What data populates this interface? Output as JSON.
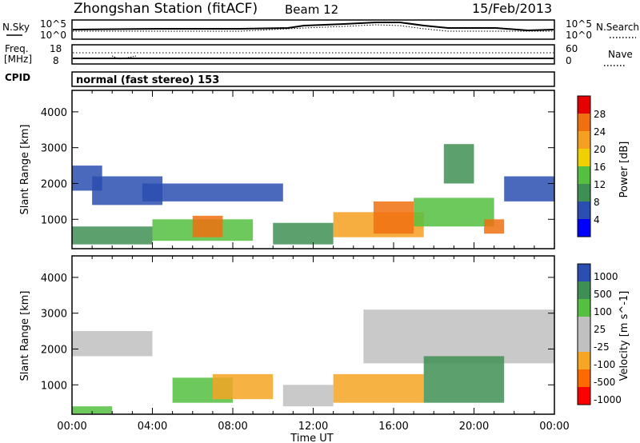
{
  "header": {
    "station": "Zhongshan Station (fitACF)",
    "beam": "Beam 12",
    "date": "15/Feb/2013"
  },
  "strip_labels": {
    "nsky": "N.Sky",
    "nsearch": "N.Search",
    "freq_line1": "Freq.",
    "freq_line2": "[MHz]",
    "nave": "Nave",
    "cpid": "CPID",
    "cpid_value": "normal (fast stereo) 153"
  },
  "noise_axis": {
    "top_left": "10^5",
    "bottom_left": "10^0",
    "top_right": "10^5",
    "bottom_right": "10^0"
  },
  "freq_axis": {
    "top_left": "18",
    "bottom_left": "8",
    "top_right": "60",
    "bottom_right": "0"
  },
  "x_axis": {
    "label": "Time UT",
    "ticks": [
      "00:00",
      "04:00",
      "08:00",
      "12:00",
      "16:00",
      "20:00",
      "00:00"
    ]
  },
  "colors": {
    "power": [
      "#0000ff",
      "#2a4fb0",
      "#3f8f55",
      "#55c040",
      "#f0d000",
      "#f5a020",
      "#f07010",
      "#e60000"
    ],
    "velocity": [
      "#ff0000",
      "#ff6a00",
      "#f5a623",
      "#c0c0c0",
      "#c0c0c0",
      "#55c040",
      "#3f8f55",
      "#2a4fb0"
    ]
  },
  "chart_data": [
    {
      "type": "heatmap",
      "title": "",
      "ylabel": "Slant Range [km]",
      "xlabel": "",
      "xlim_hours": [
        0,
        24
      ],
      "ylim": [
        180,
        4600
      ],
      "yticks": [
        "1000",
        "2000",
        "3000",
        "4000"
      ],
      "colorbar": {
        "label": "Power [dB]",
        "ticks": [
          "4",
          "8",
          "12",
          "16",
          "20",
          "24",
          "28"
        ],
        "range": [
          0,
          32
        ]
      },
      "regions": [
        {
          "t": [
            0.0,
            1.5
          ],
          "r": [
            1800,
            2500
          ],
          "value": 6
        },
        {
          "t": [
            1.0,
            4.5
          ],
          "r": [
            1400,
            2200
          ],
          "value": 5
        },
        {
          "t": [
            3.5,
            10.5
          ],
          "r": [
            1500,
            2000
          ],
          "value": 4
        },
        {
          "t": [
            0.0,
            4.0
          ],
          "r": [
            300,
            800
          ],
          "value": 10
        },
        {
          "t": [
            4.0,
            9.0
          ],
          "r": [
            400,
            1000
          ],
          "value": 14
        },
        {
          "t": [
            6.0,
            7.5
          ],
          "r": [
            500,
            1100
          ],
          "value": 26
        },
        {
          "t": [
            10.0,
            13.0
          ],
          "r": [
            300,
            900
          ],
          "value": 9
        },
        {
          "t": [
            13.0,
            17.5
          ],
          "r": [
            500,
            1200
          ],
          "value": 22
        },
        {
          "t": [
            15.0,
            17.0
          ],
          "r": [
            600,
            1500
          ],
          "value": 25
        },
        {
          "t": [
            17.0,
            21.0
          ],
          "r": [
            800,
            1600
          ],
          "value": 12
        },
        {
          "t": [
            18.5,
            20.0
          ],
          "r": [
            2000,
            3100
          ],
          "value": 8
        },
        {
          "t": [
            21.5,
            24.0
          ],
          "r": [
            1500,
            2200
          ],
          "value": 7
        },
        {
          "t": [
            20.5,
            21.5
          ],
          "r": [
            600,
            1000
          ],
          "value": 27
        }
      ]
    },
    {
      "type": "heatmap",
      "title": "",
      "ylabel": "Slant Range [km]",
      "xlabel": "Time UT",
      "xlim_hours": [
        0,
        24
      ],
      "ylim": [
        180,
        4600
      ],
      "yticks": [
        "1000",
        "2000",
        "3000",
        "4000"
      ],
      "colorbar": {
        "label": "Velocity [m s^-1]",
        "ticks": [
          "1000",
          "500",
          "100",
          "25",
          "-25",
          "-100",
          "-500",
          "-1000"
        ]
      },
      "regions": [
        {
          "t": [
            0.0,
            4.0
          ],
          "r": [
            1800,
            2500
          ],
          "value": 0
        },
        {
          "t": [
            14.5,
            24.0
          ],
          "r": [
            1600,
            3100
          ],
          "value": 0
        },
        {
          "t": [
            5.0,
            8.0
          ],
          "r": [
            500,
            1200
          ],
          "value": 100
        },
        {
          "t": [
            7.0,
            10.0
          ],
          "r": [
            600,
            1300
          ],
          "value": -120
        },
        {
          "t": [
            10.5,
            13.0
          ],
          "r": [
            400,
            1000
          ],
          "value": -80
        },
        {
          "t": [
            13.0,
            17.5
          ],
          "r": [
            500,
            1300
          ],
          "value": -250
        },
        {
          "t": [
            17.5,
            21.5
          ],
          "r": [
            500,
            1800
          ],
          "value": 150
        },
        {
          "t": [
            0.0,
            2.0
          ],
          "r": [
            200,
            400
          ],
          "value": 60
        }
      ]
    }
  ]
}
